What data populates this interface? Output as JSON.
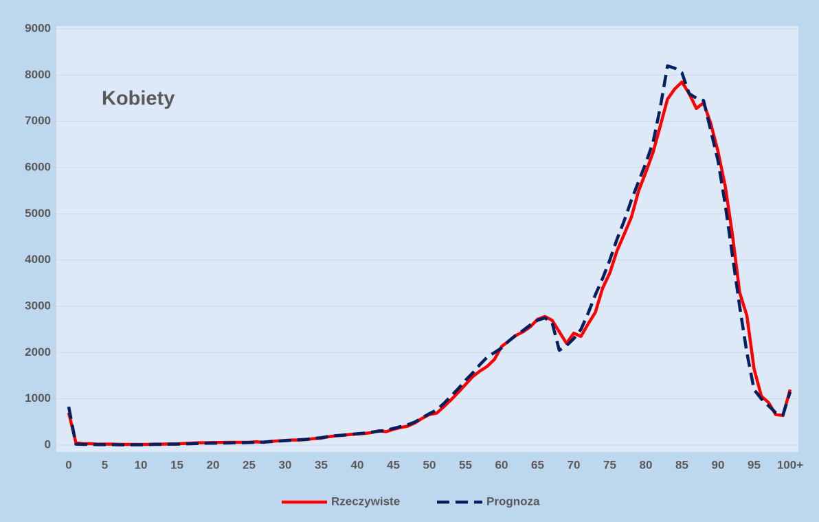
{
  "chart_data": {
    "type": "line",
    "title": "Kobiety",
    "categories": [
      "0",
      null,
      null,
      null,
      null,
      "5",
      null,
      null,
      null,
      null,
      "10",
      null,
      null,
      null,
      null,
      "15",
      null,
      null,
      null,
      null,
      "20",
      null,
      null,
      null,
      null,
      "25",
      null,
      null,
      null,
      null,
      "30",
      null,
      null,
      null,
      null,
      "35",
      null,
      null,
      null,
      null,
      "40",
      null,
      null,
      null,
      null,
      "45",
      null,
      null,
      null,
      null,
      "50",
      null,
      null,
      null,
      null,
      "55",
      null,
      null,
      null,
      null,
      "60",
      null,
      null,
      null,
      null,
      "65",
      null,
      null,
      null,
      null,
      "70",
      null,
      null,
      null,
      null,
      "75",
      null,
      null,
      null,
      null,
      "80",
      null,
      null,
      null,
      null,
      "85",
      null,
      null,
      null,
      null,
      "90",
      null,
      null,
      null,
      null,
      "95",
      null,
      null,
      null,
      null,
      "100+"
    ],
    "series": [
      {
        "name": "Rzeczywiste",
        "color": "#ff0000",
        "dashed": false,
        "values": [
          700,
          50,
          30,
          30,
          20,
          20,
          20,
          15,
          15,
          15,
          15,
          15,
          20,
          20,
          25,
          25,
          35,
          40,
          50,
          50,
          55,
          55,
          60,
          60,
          60,
          60,
          70,
          60,
          80,
          90,
          100,
          110,
          110,
          120,
          140,
          150,
          180,
          200,
          210,
          230,
          240,
          250,
          270,
          310,
          290,
          340,
          380,
          410,
          480,
          580,
          660,
          690,
          830,
          980,
          1140,
          1310,
          1480,
          1600,
          1700,
          1850,
          2130,
          2250,
          2370,
          2450,
          2560,
          2720,
          2780,
          2700,
          2450,
          2200,
          2420,
          2350,
          2620,
          2870,
          3390,
          3720,
          4200,
          4560,
          4930,
          5500,
          5900,
          6330,
          6900,
          7480,
          7700,
          7850,
          7600,
          7280,
          7400,
          6950,
          6350,
          5600,
          4550,
          3300,
          2800,
          1650,
          1060,
          920,
          660,
          640,
          1200
        ]
      },
      {
        "name": "Prognoza",
        "color": "#002060",
        "dashed": true,
        "values": [
          830,
          20,
          15,
          15,
          10,
          10,
          10,
          5,
          5,
          5,
          5,
          10,
          15,
          15,
          20,
          20,
          25,
          30,
          35,
          40,
          40,
          45,
          45,
          50,
          50,
          55,
          60,
          65,
          75,
          85,
          95,
          105,
          115,
          125,
          145,
          160,
          185,
          205,
          215,
          230,
          245,
          260,
          280,
          300,
          320,
          360,
          400,
          440,
          500,
          590,
          680,
          760,
          900,
          1060,
          1220,
          1400,
          1560,
          1740,
          1900,
          2000,
          2100,
          2250,
          2380,
          2480,
          2600,
          2700,
          2750,
          2650,
          2050,
          2150,
          2300,
          2500,
          2850,
          3250,
          3600,
          4000,
          4450,
          4850,
          5300,
          5700,
          6100,
          6550,
          7300,
          8200,
          8150,
          8050,
          7600,
          7500,
          7450,
          6800,
          6150,
          5200,
          4100,
          3000,
          2000,
          1200,
          1000,
          850,
          700,
          650,
          1150
        ]
      }
    ],
    "ylim": [
      0,
      9000
    ],
    "yticks": [
      0,
      1000,
      2000,
      3000,
      4000,
      5000,
      6000,
      7000,
      8000,
      9000
    ],
    "grid": true,
    "legend": "bottom"
  }
}
